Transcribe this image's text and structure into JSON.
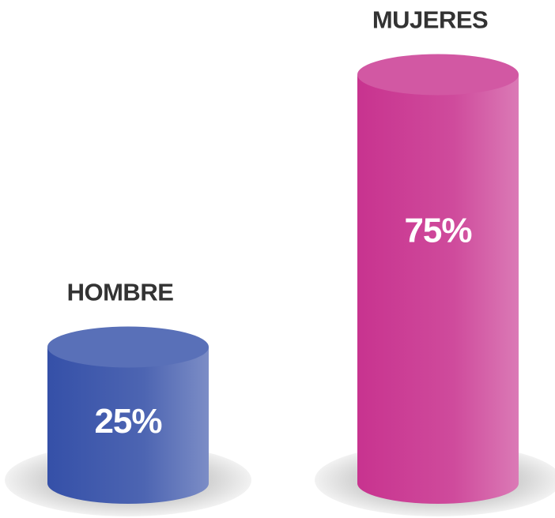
{
  "chart_data": {
    "type": "bar",
    "categories": [
      "HOMBRE",
      "MUJERES"
    ],
    "values": [
      25,
      75
    ],
    "value_labels": [
      "25%",
      "75%"
    ],
    "colors": [
      "#3550a8",
      "#c8338f"
    ]
  }
}
